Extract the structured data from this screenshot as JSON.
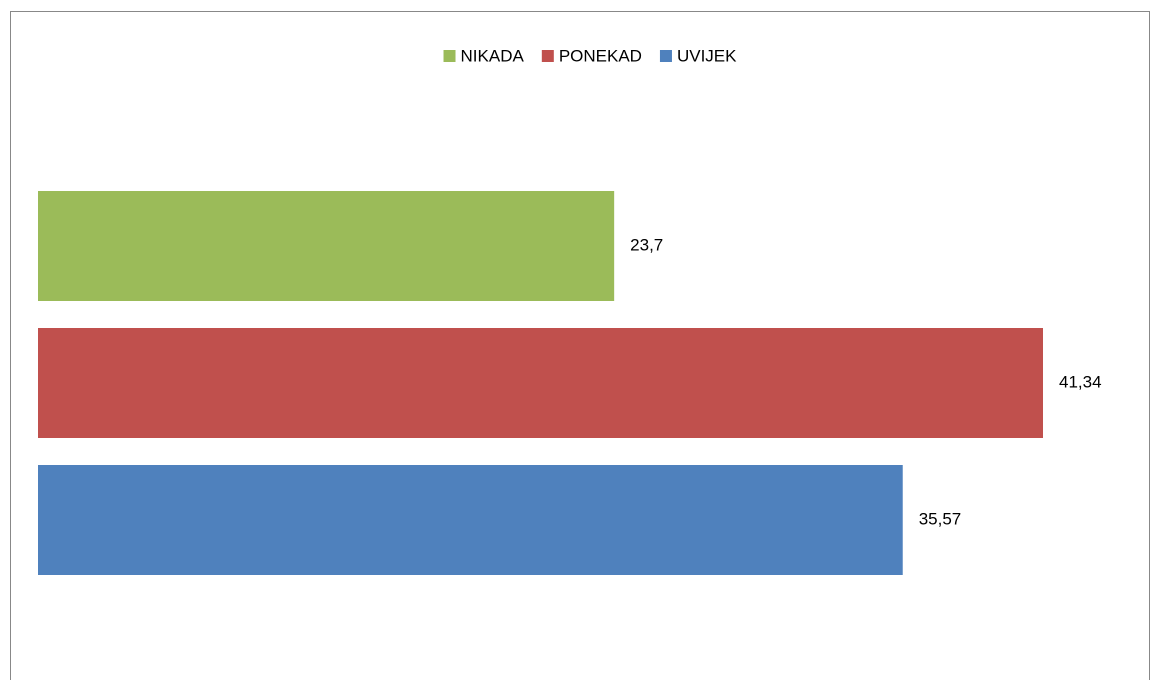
{
  "chart_data": {
    "type": "bar",
    "orientation": "horizontal",
    "legend": "top",
    "series": [
      {
        "name": "NIKADA",
        "color": "#9bbb59",
        "values": [
          23.7
        ],
        "value_labels": [
          "23,7"
        ]
      },
      {
        "name": "PONEKAD",
        "color": "#c0504d",
        "values": [
          41.34
        ],
        "value_labels": [
          "41,34"
        ]
      },
      {
        "name": "UVIJEK",
        "color": "#4f81bd",
        "values": [
          35.57
        ],
        "value_labels": [
          "35,57"
        ]
      }
    ]
  }
}
